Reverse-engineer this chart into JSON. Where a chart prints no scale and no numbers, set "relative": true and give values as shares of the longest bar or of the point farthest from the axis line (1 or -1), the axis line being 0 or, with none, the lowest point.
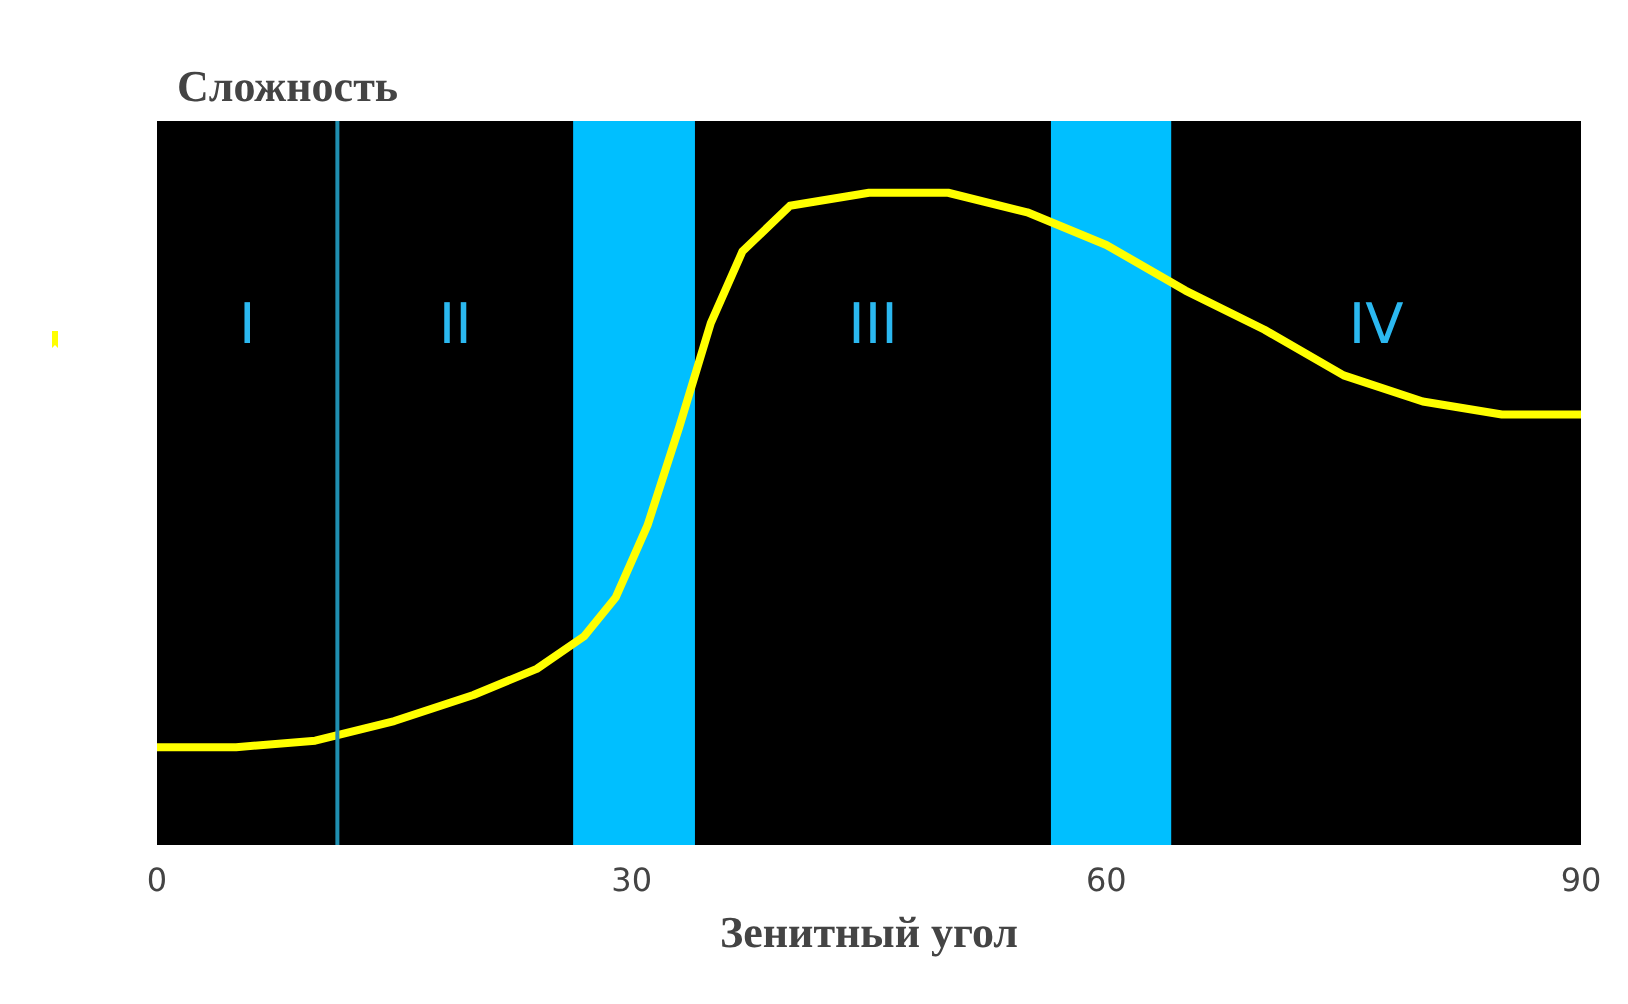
{
  "chart_data": {
    "type": "line",
    "title": "Сложность",
    "xlabel": "Зенитный угол",
    "relative": true,
    "x": [
      0,
      5,
      10,
      15,
      20,
      24,
      27,
      29,
      31,
      33,
      35,
      37,
      40,
      45,
      50,
      55,
      60,
      65,
      70,
      75,
      80,
      85,
      90
    ],
    "series": [
      {
        "color": "#ffff00",
        "values": [
          0.15,
          0.15,
          0.16,
          0.19,
          0.23,
          0.27,
          0.32,
          0.38,
          0.49,
          0.64,
          0.8,
          0.91,
          0.98,
          1.0,
          1.0,
          0.97,
          0.92,
          0.85,
          0.79,
          0.72,
          0.68,
          0.66,
          0.66
        ]
      }
    ],
    "xlim": [
      0,
      90
    ],
    "xticks": [
      0,
      30,
      60,
      90
    ],
    "ref_lines": [
      {
        "axis": "x",
        "value": 11.4,
        "color": "#1f8fb0"
      }
    ],
    "bands": [
      {
        "axis": "x",
        "from": 26.3,
        "to": 34,
        "color": "#00bfff"
      },
      {
        "axis": "x",
        "from": 56.5,
        "to": 64.1,
        "color": "#00bfff"
      }
    ],
    "annotations": [
      "I",
      "II",
      "III",
      "IV"
    ],
    "grid": false,
    "marker": "none",
    "line_style": "solid"
  }
}
